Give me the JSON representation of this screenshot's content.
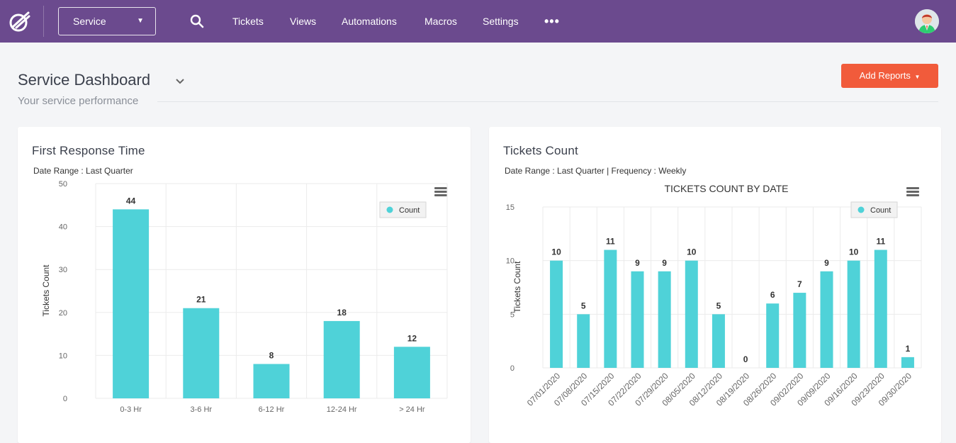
{
  "nav": {
    "workspace": "Service",
    "items": [
      "Tickets",
      "Views",
      "Automations",
      "Macros",
      "Settings"
    ],
    "more_icon": "more-horizontal-icon",
    "brand_color": "#6b4a8e"
  },
  "header": {
    "title": "Service Dashboard",
    "subtitle": "Your service performance",
    "add_reports_label": "Add Reports",
    "accent_color": "#f15b3b"
  },
  "cards": {
    "first_response": {
      "title": "First Response Time",
      "meta": "Date Range : Last Quarter"
    },
    "tickets_count": {
      "title": "Tickets Count",
      "meta": "Date Range : Last Quarter | Frequency : Weekly"
    }
  },
  "chart_data": [
    {
      "type": "bar",
      "title": "",
      "xlabel": "",
      "ylabel": "Tickets Count",
      "categories": [
        "0-3 Hr",
        "3-6 Hr",
        "6-12 Hr",
        "12-24 Hr",
        "> 24 Hr"
      ],
      "series": [
        {
          "name": "Count",
          "values": [
            44,
            21,
            8,
            18,
            12
          ]
        }
      ],
      "ylim": [
        0,
        50
      ],
      "yticks": [
        0,
        10,
        20,
        30,
        40,
        50
      ],
      "grid": true,
      "legend": "top-right",
      "color": "#4fd2d8"
    },
    {
      "type": "bar",
      "title": "TICKETS COUNT BY DATE",
      "xlabel": "",
      "ylabel": "Tickets Count",
      "categories": [
        "07/01/2020",
        "07/08/2020",
        "07/15/2020",
        "07/22/2020",
        "07/29/2020",
        "08/05/2020",
        "08/12/2020",
        "08/19/2020",
        "08/26/2020",
        "09/02/2020",
        "09/09/2020",
        "09/16/2020",
        "09/23/2020",
        "09/30/2020"
      ],
      "series": [
        {
          "name": "Count",
          "values": [
            10,
            5,
            11,
            9,
            9,
            10,
            5,
            0,
            6,
            7,
            9,
            10,
            11,
            1
          ]
        }
      ],
      "ylim": [
        0,
        15
      ],
      "yticks": [
        0,
        5,
        10,
        15
      ],
      "grid": true,
      "legend": "top-right",
      "color": "#4fd2d8"
    }
  ]
}
